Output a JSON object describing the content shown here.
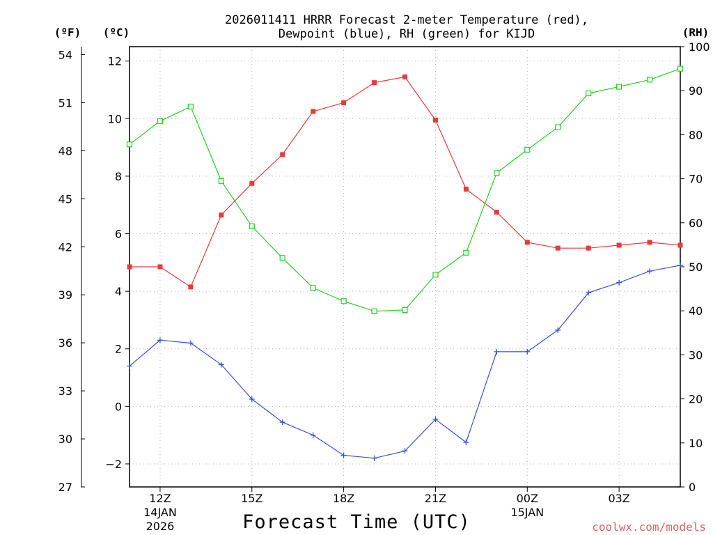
{
  "chart_data": {
    "type": "line",
    "title_line1": "2026011411 HRRR Forecast 2-meter Temperature (red),",
    "title_line2": "Dewpoint (blue), RH (green) for KIJD",
    "xlabel": "Forecast Time (UTC)",
    "credit": "coolwx.com/models",
    "unit_f": "(ºF)",
    "unit_c": "(ºC)",
    "unit_rh": "(RH)",
    "x_hours": [
      11,
      12,
      13,
      14,
      15,
      16,
      17,
      18,
      19,
      20,
      21,
      22,
      23,
      24,
      25,
      26,
      27,
      28,
      29
    ],
    "xlim": [
      11,
      29
    ],
    "x_ticks": [
      {
        "hour": 12,
        "label": "12Z",
        "sub1": "14JAN",
        "sub2": "2026"
      },
      {
        "hour": 15,
        "label": "15Z",
        "sub1": "",
        "sub2": ""
      },
      {
        "hour": 18,
        "label": "18Z",
        "sub1": "",
        "sub2": ""
      },
      {
        "hour": 21,
        "label": "21Z",
        "sub1": "",
        "sub2": ""
      },
      {
        "hour": 24,
        "label": "00Z",
        "sub1": "15JAN",
        "sub2": ""
      },
      {
        "hour": 27,
        "label": "03Z",
        "sub1": "",
        "sub2": ""
      }
    ],
    "c_axis": {
      "range": [
        -2.8,
        12.5
      ],
      "ticks": [
        -2,
        0,
        2,
        4,
        6,
        8,
        10,
        12
      ],
      "labels": [
        "−2",
        "0",
        "2",
        "4",
        "6",
        "8",
        "10",
        "12"
      ]
    },
    "f_axis": {
      "range": [
        27,
        54.5
      ],
      "ticks": [
        27,
        30,
        33,
        36,
        39,
        42,
        45,
        48,
        51,
        54
      ],
      "labels": [
        "27",
        "30",
        "33",
        "36",
        "39",
        "42",
        "45",
        "48",
        "51",
        "54"
      ]
    },
    "rh_axis": {
      "range": [
        0,
        100
      ],
      "ticks": [
        0,
        10,
        20,
        30,
        40,
        50,
        60,
        70,
        80,
        90,
        100
      ],
      "labels": [
        "0",
        "10",
        "20",
        "30",
        "40",
        "50",
        "60",
        "70",
        "80",
        "90",
        "100"
      ]
    },
    "series": [
      {
        "name": "Temperature",
        "unit": "C",
        "color": "#e83a3a",
        "marker": "filled-square",
        "values": [
          4.85,
          4.85,
          4.15,
          6.65,
          7.75,
          8.75,
          10.25,
          10.55,
          11.25,
          11.45,
          9.95,
          7.55,
          6.75,
          5.7,
          5.5,
          5.5,
          5.6,
          5.7,
          5.6
        ]
      },
      {
        "name": "Dewpoint",
        "unit": "C",
        "color": "#3a4fe0",
        "marker": "plus",
        "values": [
          1.4,
          2.3,
          2.2,
          1.45,
          0.25,
          -0.55,
          -1.0,
          -1.7,
          -1.8,
          -1.55,
          -0.45,
          -1.25,
          1.9,
          1.9,
          2.65,
          3.95,
          4.3,
          4.7,
          4.9
        ]
      },
      {
        "name": "RH",
        "unit": "%",
        "color": "#22d022",
        "marker": "open-square",
        "values": [
          77.8,
          83.1,
          86.4,
          69.5,
          59.2,
          52.0,
          45.2,
          42.2,
          39.9,
          40.2,
          48.2,
          53.2,
          71.3,
          76.6,
          81.7,
          89.4,
          90.9,
          92.5,
          95.0
        ]
      }
    ]
  }
}
